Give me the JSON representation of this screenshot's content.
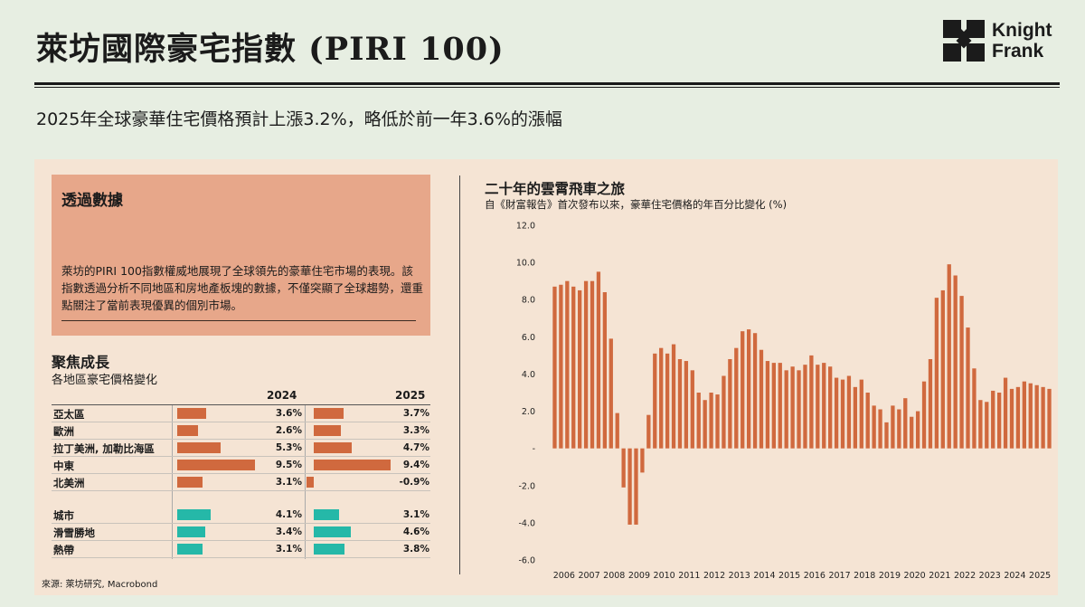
{
  "header": {
    "title": "萊坊國際豪宅指數 (PIRI 100)",
    "subtitle": "2025年全球豪華住宅價格預計上漲3.2%，略低於前一年3.6%的漲幅",
    "logo_line1": "Knight",
    "logo_line2": "Frank"
  },
  "colors": {
    "bar_orange": "#d0693e",
    "bar_teal": "#25b8a8",
    "box_bg": "#e7a78a",
    "panel_bg": "#f5e4d4"
  },
  "infobox": {
    "title": "透過數據",
    "text": "萊坊的PIRI 100指數權威地展現了全球領先的豪華住宅市場的表現。該指數透過分析不同地區和房地產板塊的數據，不僅突顯了全球趨勢，還重點關注了當前表現優異的個別市場。"
  },
  "focus": {
    "title": "聚焦成長",
    "subtitle": "各地區豪宅價格變化",
    "col_2024": "2024",
    "col_2025": "2025",
    "regions": [
      {
        "label": "亞太區",
        "v2024": 3.6,
        "t2024": "3.6%",
        "v2025": 3.7,
        "t2025": "3.7%"
      },
      {
        "label": "歐洲",
        "v2024": 2.6,
        "t2024": "2.6%",
        "v2025": 3.3,
        "t2025": "3.3%"
      },
      {
        "label": "拉丁美洲, 加勒比海區",
        "v2024": 5.3,
        "t2024": "5.3%",
        "v2025": 4.7,
        "t2025": "4.7%"
      },
      {
        "label": "中東",
        "v2024": 9.5,
        "t2024": "9.5%",
        "v2025": 9.4,
        "t2025": "9.4%"
      },
      {
        "label": "北美洲",
        "v2024": 3.1,
        "t2024": "3.1%",
        "v2025": -0.9,
        "t2025": "-0.9%"
      }
    ],
    "segments": [
      {
        "label": "城市",
        "v2024": 4.1,
        "t2024": "4.1%",
        "v2025": 3.1,
        "t2025": "3.1%"
      },
      {
        "label": "滑雪勝地",
        "v2024": 3.4,
        "t2024": "3.4%",
        "v2025": 4.6,
        "t2025": "4.6%"
      },
      {
        "label": "熱帶",
        "v2024": 3.1,
        "t2024": "3.1%",
        "v2025": 3.8,
        "t2025": "3.8%"
      }
    ],
    "source": "來源: 萊坊研究, Macrobond"
  },
  "chart_data": {
    "type": "bar",
    "title": "二十年的雲霄飛車之旅",
    "subtitle": "自《財富報告》首次發布以來，豪華住宅價格的年百分比變化 (%)",
    "ylim": [
      -6,
      12
    ],
    "yticks": [
      "-6.0",
      "-4.0",
      "-2.0",
      "-",
      "2.0",
      "4.0",
      "6.0",
      "8.0",
      "10.0",
      "12.0"
    ],
    "xticks": [
      "2006",
      "2007",
      "2008",
      "2009",
      "2010",
      "2011",
      "2012",
      "2013",
      "2014",
      "2015",
      "2016",
      "2017",
      "2018",
      "2019",
      "2020",
      "2021",
      "2022",
      "2023",
      "2024",
      "2025"
    ],
    "grid": false,
    "values": [
      8.7,
      8.8,
      9.0,
      8.7,
      8.5,
      9.0,
      9.0,
      9.5,
      8.4,
      5.9,
      1.9,
      -2.1,
      -4.1,
      -4.1,
      -1.3,
      1.8,
      5.1,
      5.4,
      5.1,
      5.6,
      4.8,
      4.7,
      4.2,
      3.0,
      2.6,
      3.0,
      2.9,
      3.9,
      4.8,
      5.4,
      6.3,
      6.4,
      6.2,
      5.3,
      4.7,
      4.6,
      4.6,
      4.2,
      4.4,
      4.2,
      4.5,
      5.0,
      4.5,
      4.6,
      4.4,
      3.8,
      3.7,
      3.9,
      3.3,
      3.7,
      3.0,
      2.3,
      2.1,
      1.4,
      2.3,
      2.1,
      2.7,
      1.7,
      2.0,
      3.6,
      4.8,
      8.1,
      8.5,
      9.9,
      9.3,
      8.2,
      6.5,
      4.3,
      2.6,
      2.5,
      3.1,
      3.0,
      3.8,
      3.2,
      3.3,
      3.6,
      3.5,
      3.4,
      3.3,
      3.2
    ]
  }
}
